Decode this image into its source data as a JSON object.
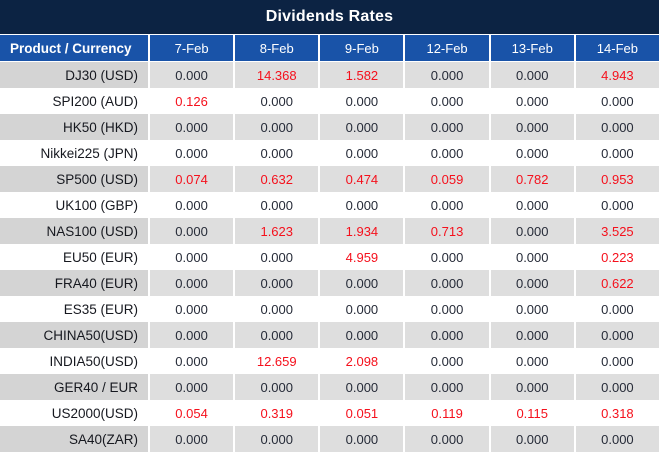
{
  "title": "Dividends Rates",
  "colors": {
    "title_bg": "#0c2343",
    "header_bg": "#1953a8",
    "gray_row_product": "#d4d4d4",
    "gray_row_values": "#dedede",
    "white_row": "#ffffff",
    "value_dark": "#262b38",
    "value_red": "#f5101c"
  },
  "table": {
    "product_header": "Product / Currency",
    "date_columns": [
      "7-Feb",
      "8-Feb",
      "9-Feb",
      "12-Feb",
      "13-Feb",
      "14-Feb"
    ],
    "rows": [
      {
        "product": "DJ30 (USD)",
        "values": [
          "0.000",
          "14.368",
          "1.582",
          "0.000",
          "0.000",
          "4.943"
        ]
      },
      {
        "product": "SPI200 (AUD)",
        "values": [
          "0.126",
          "0.000",
          "0.000",
          "0.000",
          "0.000",
          "0.000"
        ]
      },
      {
        "product": "HK50 (HKD)",
        "values": [
          "0.000",
          "0.000",
          "0.000",
          "0.000",
          "0.000",
          "0.000"
        ]
      },
      {
        "product": "Nikkei225 (JPN)",
        "values": [
          "0.000",
          "0.000",
          "0.000",
          "0.000",
          "0.000",
          "0.000"
        ]
      },
      {
        "product": "SP500 (USD)",
        "values": [
          "0.074",
          "0.632",
          "0.474",
          "0.059",
          "0.782",
          "0.953"
        ]
      },
      {
        "product": "UK100 (GBP)",
        "values": [
          "0.000",
          "0.000",
          "0.000",
          "0.000",
          "0.000",
          "0.000"
        ]
      },
      {
        "product": "NAS100 (USD)",
        "values": [
          "0.000",
          "1.623",
          "1.934",
          "0.713",
          "0.000",
          "3.525"
        ]
      },
      {
        "product": "EU50 (EUR)",
        "values": [
          "0.000",
          "0.000",
          "4.959",
          "0.000",
          "0.000",
          "0.223"
        ]
      },
      {
        "product": "FRA40 (EUR)",
        "values": [
          "0.000",
          "0.000",
          "0.000",
          "0.000",
          "0.000",
          "0.622"
        ]
      },
      {
        "product": "ES35 (EUR)",
        "values": [
          "0.000",
          "0.000",
          "0.000",
          "0.000",
          "0.000",
          "0.000"
        ]
      },
      {
        "product": "CHINA50(USD)",
        "values": [
          "0.000",
          "0.000",
          "0.000",
          "0.000",
          "0.000",
          "0.000"
        ]
      },
      {
        "product": "INDIA50(USD)",
        "values": [
          "0.000",
          "12.659",
          "2.098",
          "0.000",
          "0.000",
          "0.000"
        ]
      },
      {
        "product": "GER40 / EUR",
        "values": [
          "0.000",
          "0.000",
          "0.000",
          "0.000",
          "0.000",
          "0.000"
        ]
      },
      {
        "product": "US2000(USD)",
        "values": [
          "0.054",
          "0.319",
          "0.051",
          "0.119",
          "0.115",
          "0.318"
        ]
      },
      {
        "product": "SA40(ZAR)",
        "values": [
          "0.000",
          "0.000",
          "0.000",
          "0.000",
          "0.000",
          "0.000"
        ]
      }
    ]
  }
}
